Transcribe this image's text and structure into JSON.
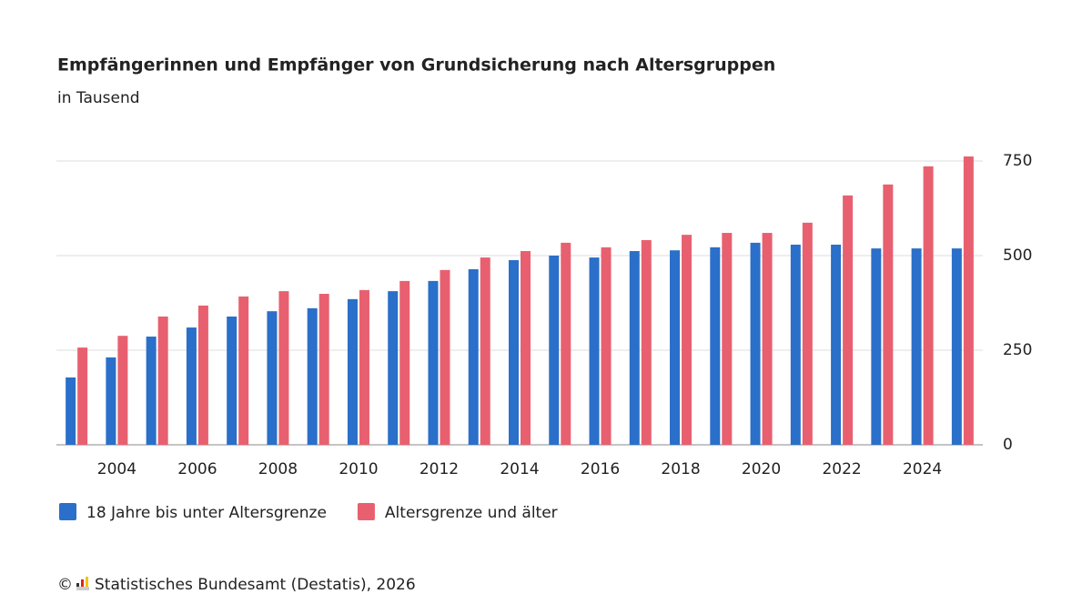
{
  "chart_data": {
    "type": "bar",
    "title": "Empfängerinnen und Empfänger von Grundsicherung nach Altersgruppen",
    "subtitle": "in Tausend",
    "categories": [
      null,
      "2004",
      null,
      "2006",
      null,
      "2008",
      null,
      "2010",
      null,
      "2012",
      null,
      "2014",
      null,
      "2016",
      null,
      "2018",
      null,
      "2020",
      null,
      "2022",
      null,
      "2024",
      null
    ],
    "series": [
      {
        "name": "18 Jahre bis unter Altersgrenze",
        "color": "#2a6fc9",
        "values": [
          178,
          231,
          286,
          310,
          339,
          353,
          361,
          385,
          406,
          433,
          464,
          488,
          500,
          495,
          512,
          514,
          522,
          534,
          529,
          529,
          519,
          519,
          519
        ]
      },
      {
        "name": "Altersgrenze und älter",
        "color": "#e8606f",
        "values": [
          257,
          288,
          339,
          368,
          392,
          406,
          399,
          409,
          433,
          462,
          495,
          512,
          534,
          522,
          541,
          555,
          560,
          560,
          587,
          659,
          688,
          736,
          762
        ]
      }
    ],
    "ylim": [
      0,
      770
    ],
    "yticks": [
      0,
      250,
      500,
      750
    ],
    "grid": true,
    "copyright": "©",
    "source": "Statistisches Bundesamt (Destatis), 2026"
  }
}
